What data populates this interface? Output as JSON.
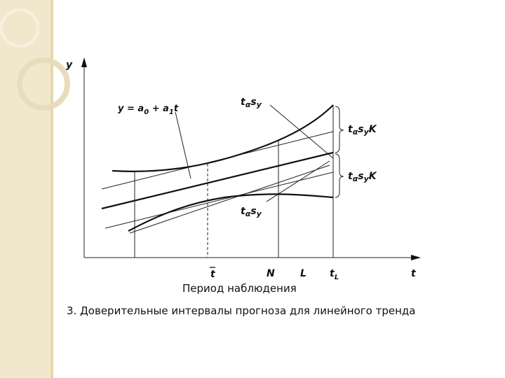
{
  "axis_y": "y",
  "axis_x": "t",
  "trend_formula": [
    "y = a",
    "0",
    " + a",
    "1",
    "t"
  ],
  "upper_band_label": [
    "t",
    "α",
    "s",
    "y"
  ],
  "lower_band_label": [
    "t",
    "α",
    "s",
    "y"
  ],
  "upper_forecast_label": [
    "t",
    "α",
    "s",
    "y",
    "K"
  ],
  "lower_forecast_label": [
    "t",
    "α",
    "s",
    "y",
    "K"
  ],
  "x_marks": [
    "t",
    "N",
    "L",
    "t",
    "L"
  ],
  "x_axis_title": "Период наблюдения",
  "caption": "3. Доверительные интервалы прогноза для линейного тренда"
}
